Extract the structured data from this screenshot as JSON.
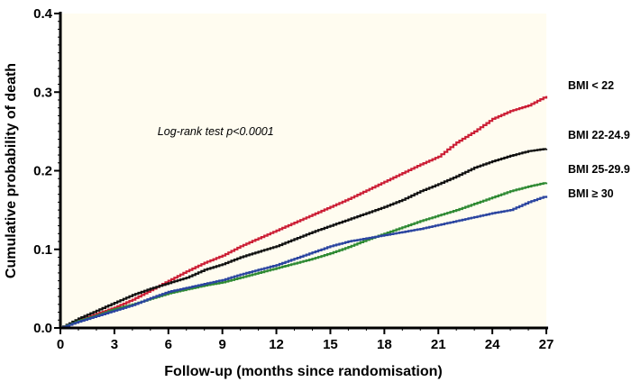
{
  "chart_data": {
    "type": "line",
    "xlabel": "Follow-up (months since randomisation)",
    "ylabel": "Cumulative probability of death",
    "xlim": [
      0,
      27
    ],
    "ylim": [
      0,
      0.4
    ],
    "xticks": [
      0,
      3,
      6,
      9,
      12,
      15,
      18,
      21,
      24,
      27
    ],
    "yticks": [
      "0.0",
      "0.1",
      "0.2",
      "0.3",
      "0.4"
    ],
    "annotation": "Log-rank test  p<0.0001",
    "legend_placement": "right, beside line ends",
    "grid": false,
    "background_color": "#fffcf0",
    "series": [
      {
        "name": "BMI < 22",
        "color": "#cc1f36",
        "x": [
          0,
          1,
          2,
          3,
          4,
          5,
          6,
          7,
          8,
          9,
          10,
          11,
          12,
          13,
          14,
          15,
          16,
          17,
          18,
          19,
          20,
          21,
          22,
          23,
          24,
          25,
          26,
          27
        ],
        "y": [
          0,
          0.01,
          0.018,
          0.026,
          0.036,
          0.048,
          0.06,
          0.072,
          0.083,
          0.092,
          0.104,
          0.114,
          0.124,
          0.134,
          0.144,
          0.154,
          0.164,
          0.175,
          0.186,
          0.197,
          0.208,
          0.218,
          0.236,
          0.25,
          0.266,
          0.276,
          0.283,
          0.295
        ]
      },
      {
        "name": "BMI 22-24.9",
        "color": "#111111",
        "x": [
          0,
          1,
          2,
          3,
          4,
          5,
          6,
          7,
          8,
          9,
          10,
          11,
          12,
          13,
          14,
          15,
          16,
          17,
          18,
          19,
          20,
          21,
          22,
          23,
          24,
          25,
          26,
          27
        ],
        "y": [
          0,
          0.012,
          0.022,
          0.032,
          0.042,
          0.05,
          0.057,
          0.064,
          0.074,
          0.081,
          0.09,
          0.097,
          0.104,
          0.113,
          0.122,
          0.13,
          0.138,
          0.146,
          0.154,
          0.163,
          0.174,
          0.183,
          0.193,
          0.204,
          0.212,
          0.219,
          0.225,
          0.228
        ]
      },
      {
        "name": "BMI 25-29.9",
        "color": "#2f8a33",
        "x": [
          0,
          1,
          2,
          3,
          4,
          5,
          6,
          7,
          8,
          9,
          10,
          11,
          12,
          13,
          14,
          15,
          16,
          17,
          18,
          19,
          20,
          21,
          22,
          23,
          24,
          25,
          26,
          27
        ],
        "y": [
          0,
          0.009,
          0.016,
          0.024,
          0.03,
          0.037,
          0.044,
          0.049,
          0.054,
          0.058,
          0.064,
          0.07,
          0.076,
          0.082,
          0.088,
          0.095,
          0.103,
          0.112,
          0.12,
          0.128,
          0.136,
          0.143,
          0.15,
          0.158,
          0.166,
          0.174,
          0.18,
          0.185
        ]
      },
      {
        "name": "BMI ≥ 30",
        "color": "#2b45a0",
        "x": [
          0,
          1,
          2,
          3,
          4,
          5,
          6,
          7,
          8,
          9,
          10,
          11,
          12,
          13,
          14,
          15,
          16,
          17,
          18,
          19,
          20,
          21,
          22,
          23,
          24,
          25,
          26,
          27
        ],
        "y": [
          0,
          0.008,
          0.015,
          0.022,
          0.029,
          0.038,
          0.046,
          0.051,
          0.056,
          0.061,
          0.068,
          0.074,
          0.08,
          0.088,
          0.096,
          0.104,
          0.11,
          0.114,
          0.118,
          0.122,
          0.126,
          0.131,
          0.136,
          0.141,
          0.146,
          0.15,
          0.16,
          0.168
        ]
      }
    ]
  }
}
